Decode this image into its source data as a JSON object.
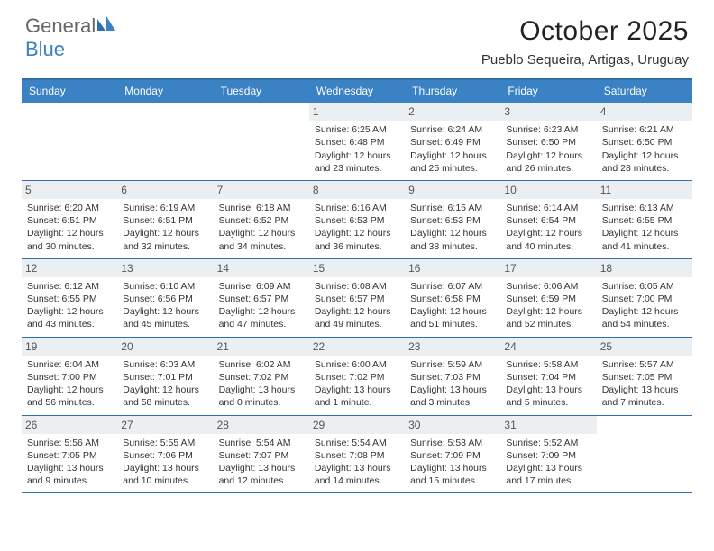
{
  "logo": {
    "first": "General",
    "second": "Blue"
  },
  "title": "October 2025",
  "subtitle": "Pueblo Sequeira, Artigas, Uruguay",
  "colors": {
    "header_bg": "#3b82c4",
    "rule": "#2f6ea8",
    "daynum_bg": "#eceff1",
    "logo_blue": "#3b82c4",
    "logo_gray": "#666666"
  },
  "day_headers": [
    "Sunday",
    "Monday",
    "Tuesday",
    "Wednesday",
    "Thursday",
    "Friday",
    "Saturday"
  ],
  "weeks": [
    [
      null,
      null,
      null,
      {
        "n": "1",
        "sr": "6:25 AM",
        "ss": "6:48 PM",
        "dl": "12 hours and 23 minutes."
      },
      {
        "n": "2",
        "sr": "6:24 AM",
        "ss": "6:49 PM",
        "dl": "12 hours and 25 minutes."
      },
      {
        "n": "3",
        "sr": "6:23 AM",
        "ss": "6:50 PM",
        "dl": "12 hours and 26 minutes."
      },
      {
        "n": "4",
        "sr": "6:21 AM",
        "ss": "6:50 PM",
        "dl": "12 hours and 28 minutes."
      }
    ],
    [
      {
        "n": "5",
        "sr": "6:20 AM",
        "ss": "6:51 PM",
        "dl": "12 hours and 30 minutes."
      },
      {
        "n": "6",
        "sr": "6:19 AM",
        "ss": "6:51 PM",
        "dl": "12 hours and 32 minutes."
      },
      {
        "n": "7",
        "sr": "6:18 AM",
        "ss": "6:52 PM",
        "dl": "12 hours and 34 minutes."
      },
      {
        "n": "8",
        "sr": "6:16 AM",
        "ss": "6:53 PM",
        "dl": "12 hours and 36 minutes."
      },
      {
        "n": "9",
        "sr": "6:15 AM",
        "ss": "6:53 PM",
        "dl": "12 hours and 38 minutes."
      },
      {
        "n": "10",
        "sr": "6:14 AM",
        "ss": "6:54 PM",
        "dl": "12 hours and 40 minutes."
      },
      {
        "n": "11",
        "sr": "6:13 AM",
        "ss": "6:55 PM",
        "dl": "12 hours and 41 minutes."
      }
    ],
    [
      {
        "n": "12",
        "sr": "6:12 AM",
        "ss": "6:55 PM",
        "dl": "12 hours and 43 minutes."
      },
      {
        "n": "13",
        "sr": "6:10 AM",
        "ss": "6:56 PM",
        "dl": "12 hours and 45 minutes."
      },
      {
        "n": "14",
        "sr": "6:09 AM",
        "ss": "6:57 PM",
        "dl": "12 hours and 47 minutes."
      },
      {
        "n": "15",
        "sr": "6:08 AM",
        "ss": "6:57 PM",
        "dl": "12 hours and 49 minutes."
      },
      {
        "n": "16",
        "sr": "6:07 AM",
        "ss": "6:58 PM",
        "dl": "12 hours and 51 minutes."
      },
      {
        "n": "17",
        "sr": "6:06 AM",
        "ss": "6:59 PM",
        "dl": "12 hours and 52 minutes."
      },
      {
        "n": "18",
        "sr": "6:05 AM",
        "ss": "7:00 PM",
        "dl": "12 hours and 54 minutes."
      }
    ],
    [
      {
        "n": "19",
        "sr": "6:04 AM",
        "ss": "7:00 PM",
        "dl": "12 hours and 56 minutes."
      },
      {
        "n": "20",
        "sr": "6:03 AM",
        "ss": "7:01 PM",
        "dl": "12 hours and 58 minutes."
      },
      {
        "n": "21",
        "sr": "6:02 AM",
        "ss": "7:02 PM",
        "dl": "13 hours and 0 minutes."
      },
      {
        "n": "22",
        "sr": "6:00 AM",
        "ss": "7:02 PM",
        "dl": "13 hours and 1 minute."
      },
      {
        "n": "23",
        "sr": "5:59 AM",
        "ss": "7:03 PM",
        "dl": "13 hours and 3 minutes."
      },
      {
        "n": "24",
        "sr": "5:58 AM",
        "ss": "7:04 PM",
        "dl": "13 hours and 5 minutes."
      },
      {
        "n": "25",
        "sr": "5:57 AM",
        "ss": "7:05 PM",
        "dl": "13 hours and 7 minutes."
      }
    ],
    [
      {
        "n": "26",
        "sr": "5:56 AM",
        "ss": "7:05 PM",
        "dl": "13 hours and 9 minutes."
      },
      {
        "n": "27",
        "sr": "5:55 AM",
        "ss": "7:06 PM",
        "dl": "13 hours and 10 minutes."
      },
      {
        "n": "28",
        "sr": "5:54 AM",
        "ss": "7:07 PM",
        "dl": "13 hours and 12 minutes."
      },
      {
        "n": "29",
        "sr": "5:54 AM",
        "ss": "7:08 PM",
        "dl": "13 hours and 14 minutes."
      },
      {
        "n": "30",
        "sr": "5:53 AM",
        "ss": "7:09 PM",
        "dl": "13 hours and 15 minutes."
      },
      {
        "n": "31",
        "sr": "5:52 AM",
        "ss": "7:09 PM",
        "dl": "13 hours and 17 minutes."
      },
      null
    ]
  ],
  "labels": {
    "sunrise": "Sunrise:",
    "sunset": "Sunset:",
    "daylight": "Daylight:"
  }
}
